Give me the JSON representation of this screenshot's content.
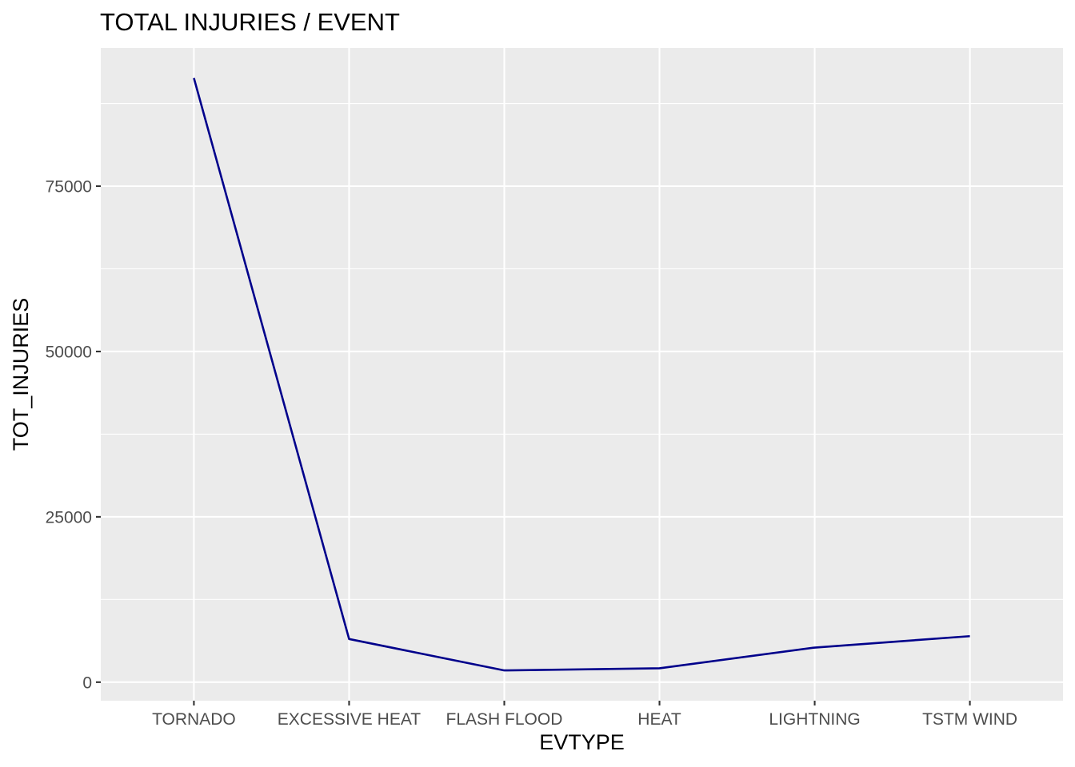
{
  "chart_data": {
    "type": "line",
    "title": "TOTAL INJURIES / EVENT",
    "xlabel": "EVTYPE",
    "ylabel": "TOT_INJURIES",
    "categories": [
      "TORNADO",
      "EXCESSIVE HEAT",
      "FLASH FLOOD",
      "HEAT",
      "LIGHTNING",
      "TSTM WIND"
    ],
    "values": [
      91346,
      6525,
      1777,
      2100,
      5230,
      6957
    ],
    "yticks": [
      0,
      25000,
      50000,
      75000
    ],
    "ytick_labels": [
      "0",
      "25000",
      "50000",
      "75000"
    ],
    "ylim": [
      -2800,
      95900
    ],
    "grid": true,
    "legend": "none",
    "colors": {
      "line": "#00008b",
      "panel_background": "#ebebeb",
      "grid": "#ffffff",
      "tick_text": "#4d4d4d",
      "tick_mark": "#333333"
    }
  }
}
